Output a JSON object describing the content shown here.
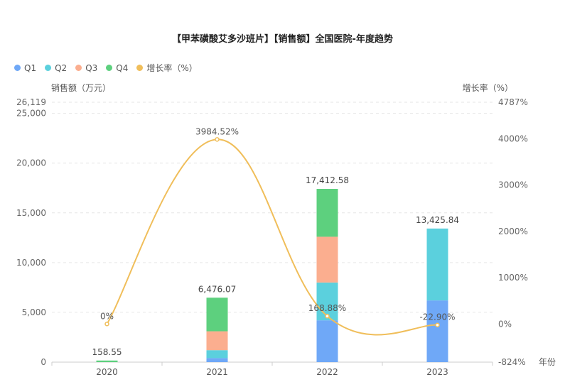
{
  "chart_data": {
    "type": "bar",
    "title": "【甲苯磺酸艾多沙班片】【销售额】全国医院-年度趋势",
    "categories": [
      "2020",
      "2021",
      "2022",
      "2023"
    ],
    "xlabel": "年份",
    "ylabel": "销售额（万元）",
    "y2label": "增长率（%）",
    "ylim": [
      0,
      26119
    ],
    "y2lim": [
      -824,
      4787
    ],
    "y_ticks": [
      "0",
      "5,000",
      "10,000",
      "15,000",
      "20,000",
      "25,000",
      "26,119"
    ],
    "y2_ticks": [
      "-824%",
      "0%",
      "1000%",
      "2000%",
      "3000%",
      "4000%",
      "4787%"
    ],
    "series": [
      {
        "name": "Q1",
        "color": "#6fa8f7",
        "values": [
          0,
          400,
          4200,
          6200
        ]
      },
      {
        "name": "Q2",
        "color": "#5bd0dd",
        "values": [
          0,
          800,
          3800,
          7225.84
        ]
      },
      {
        "name": "Q3",
        "color": "#fbae8f",
        "values": [
          0,
          1900,
          4600,
          0
        ]
      },
      {
        "name": "Q4",
        "color": "#5dd07e",
        "values": [
          158.55,
          3376.07,
          4812.58,
          0
        ]
      }
    ],
    "totals": [
      "158.55",
      "6,476.07",
      "17,412.58",
      "13,425.84"
    ],
    "growth": {
      "name": "增长率（%）",
      "color": "#f0be5a",
      "values": [
        0,
        3984.52,
        168.88,
        -22.9
      ],
      "labels": [
        "0%",
        "3984.52%",
        "168.88%",
        "-22.90%"
      ]
    },
    "legend_position": "top-left",
    "grid": true
  }
}
